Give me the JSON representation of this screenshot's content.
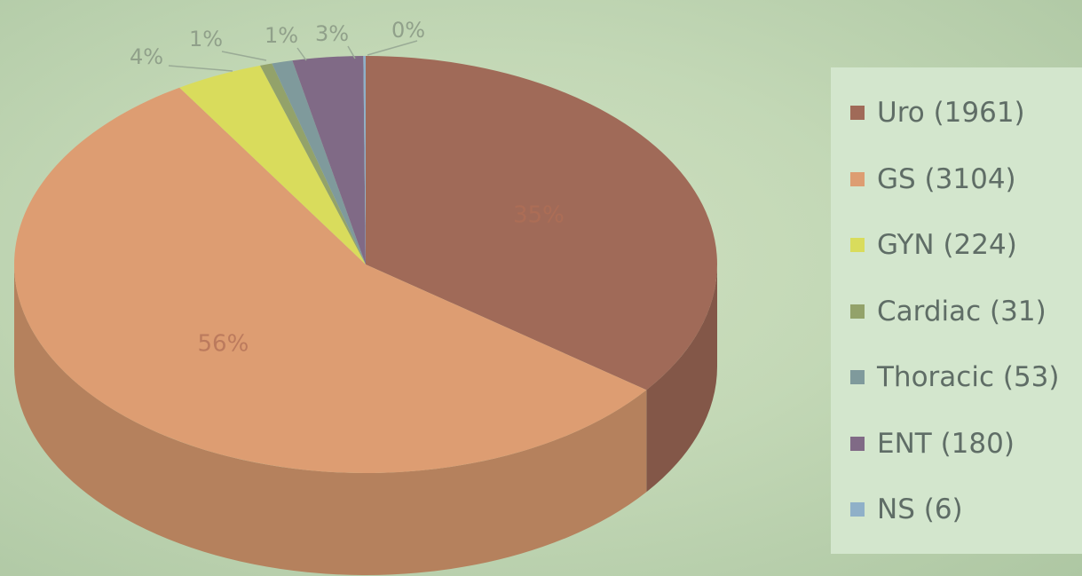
{
  "chart_data": {
    "type": "pie",
    "title": "",
    "legend_position": "right",
    "slices": [
      {
        "label": "Uro (1961)",
        "value": 1961,
        "percent_label": "35%",
        "color": "#a06a58"
      },
      {
        "label": "GS (3104)",
        "value": 3104,
        "percent_label": "56%",
        "color": "#dd9d72"
      },
      {
        "label": "GYN (224)",
        "value": 224,
        "percent_label": "4%",
        "color": "#d9dc5c"
      },
      {
        "label": "Cardiac (31)",
        "value": 31,
        "percent_label": "1%",
        "color": "#93a26a"
      },
      {
        "label": "Thoracic (53)",
        "value": 53,
        "percent_label": "1%",
        "color": "#7f9a9c"
      },
      {
        "label": "ENT (180)",
        "value": 180,
        "percent_label": "3%",
        "color": "#806a86"
      },
      {
        "label": "NS (6)",
        "value": 6,
        "percent_label": "0%",
        "color": "#8fb0c8"
      }
    ]
  }
}
